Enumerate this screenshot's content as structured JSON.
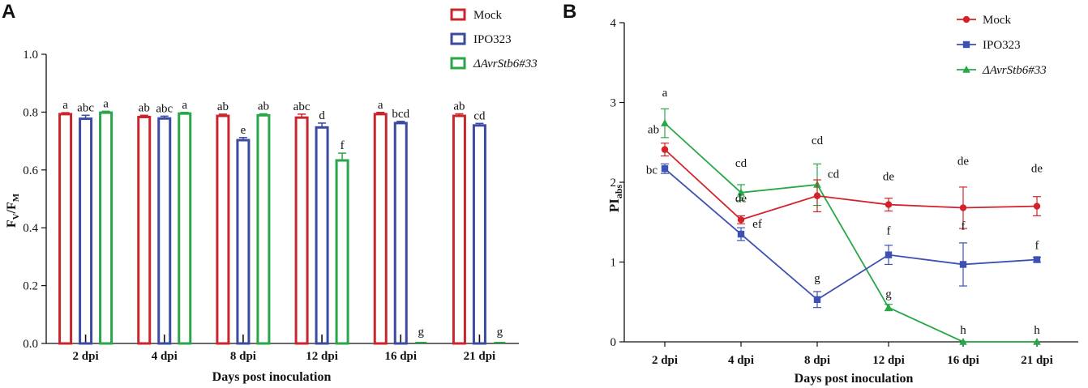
{
  "chart_data": [
    {
      "panel": "A",
      "type": "bar",
      "xlabel": "Days post inoculation",
      "ylabel": "FV/FM",
      "ylabel_main": "F",
      "ylabel_sub1": "V",
      "ylabel_slash": "/F",
      "ylabel_sub2": "M",
      "ylim": [
        0,
        1.0
      ],
      "yticks": [
        "0.0",
        "0.2",
        "0.4",
        "0.6",
        "0.8",
        "1.0"
      ],
      "categories": [
        "2 dpi",
        "4 dpi",
        "8 dpi",
        "12 dpi",
        "16 dpi",
        "21 dpi"
      ],
      "series": [
        {
          "name": "Mock",
          "color": "#c8262c",
          "values": [
            0.793,
            0.783,
            0.787,
            0.781,
            0.793,
            0.787
          ],
          "errors": [
            0.005,
            0.006,
            0.006,
            0.012,
            0.006,
            0.007
          ],
          "labels": [
            "a",
            "ab",
            "ab",
            "abc",
            "a",
            "ab"
          ]
        },
        {
          "name": "IPO323",
          "color": "#3b4aa3",
          "values": [
            0.777,
            0.778,
            0.703,
            0.747,
            0.762,
            0.754
          ],
          "errors": [
            0.012,
            0.008,
            0.009,
            0.015,
            0.006,
            0.007
          ],
          "labels": [
            "abc",
            "abc",
            "e",
            "d",
            "bcd",
            "cd"
          ]
        },
        {
          "name": "ΔAvrStb6#33",
          "color": "#2aa64a",
          "values": [
            0.798,
            0.795,
            0.789,
            0.633,
            0.0,
            0.0
          ],
          "errors": [
            0.005,
            0.004,
            0.005,
            0.025,
            0.0,
            0.0
          ],
          "labels": [
            "a",
            "a",
            "ab",
            "f",
            "g",
            "g"
          ]
        }
      ]
    },
    {
      "panel": "B",
      "type": "line",
      "xlabel": "Days post inoculation",
      "ylabel": "PIabs",
      "ylabel_main": "PI",
      "ylabel_sub": "abs",
      "ylim": [
        0,
        4
      ],
      "yticks": [
        "0",
        "1",
        "2",
        "3",
        "4"
      ],
      "categories": [
        "2 dpi",
        "4 dpi",
        "8 dpi",
        "12 dpi",
        "16 dpi",
        "21 dpi"
      ],
      "series": [
        {
          "name": "Mock",
          "color": "#d2232a",
          "marker": "circle",
          "values": [
            2.41,
            1.53,
            1.83,
            1.72,
            1.68,
            1.7
          ],
          "errors": [
            0.08,
            0.05,
            0.2,
            0.08,
            0.26,
            0.12
          ],
          "labels": [
            "ab",
            "de",
            "cd",
            "de",
            "de",
            "de"
          ]
        },
        {
          "name": "IPO323",
          "color": "#3e50b4",
          "marker": "square",
          "values": [
            2.17,
            1.35,
            0.53,
            1.09,
            0.97,
            1.03
          ],
          "errors": [
            0.06,
            0.08,
            0.1,
            0.12,
            0.27,
            0.03
          ],
          "labels": [
            "bc",
            "ef",
            "g",
            "f",
            "f",
            "f"
          ]
        },
        {
          "name": "ΔAvrStb6#33",
          "color": "#28a745",
          "marker": "triangle",
          "values": [
            2.74,
            1.87,
            1.97,
            0.43,
            0.0,
            0.0
          ],
          "errors": [
            0.18,
            0.1,
            0.26,
            0.04,
            0.0,
            0.0
          ],
          "labels": [
            "a",
            "cd",
            "cd",
            "g",
            "h",
            "h"
          ]
        }
      ]
    }
  ]
}
